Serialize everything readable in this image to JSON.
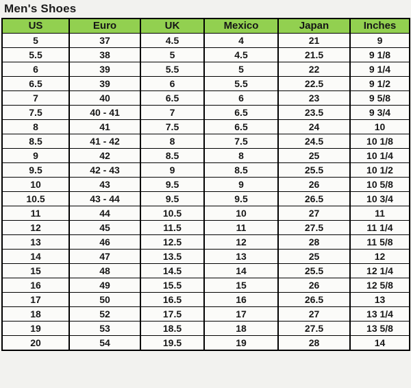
{
  "page": {
    "title": "Men's Shoes"
  },
  "colors": {
    "header_bg": "#92d050",
    "border": "#000000",
    "cell_bg": "#fbfbf9",
    "page_bg": "#f2f2ef",
    "text": "#161616"
  },
  "chart_data": {
    "type": "table",
    "title": "Men's Shoes",
    "columns": [
      "US",
      "Euro",
      "UK",
      "Mexico",
      "Japan",
      "Inches"
    ],
    "rows": [
      [
        "5",
        "37",
        "4.5",
        "4",
        "21",
        "9"
      ],
      [
        "5.5",
        "38",
        "5",
        "4.5",
        "21.5",
        "9 1/8"
      ],
      [
        "6",
        "39",
        "5.5",
        "5",
        "22",
        "9 1/4"
      ],
      [
        "6.5",
        "39",
        "6",
        "5.5",
        "22.5",
        "9 1/2"
      ],
      [
        "7",
        "40",
        "6.5",
        "6",
        "23",
        "9 5/8"
      ],
      [
        "7.5",
        "40 - 41",
        "7",
        "6.5",
        "23.5",
        "9 3/4"
      ],
      [
        "8",
        "41",
        "7.5",
        "6.5",
        "24",
        "10"
      ],
      [
        "8.5",
        "41 - 42",
        "8",
        "7.5",
        "24.5",
        "10 1/8"
      ],
      [
        "9",
        "42",
        "8.5",
        "8",
        "25",
        "10 1/4"
      ],
      [
        "9.5",
        "42 - 43",
        "9",
        "8.5",
        "25.5",
        "10 1/2"
      ],
      [
        "10",
        "43",
        "9.5",
        "9",
        "26",
        "10 5/8"
      ],
      [
        "10.5",
        "43 - 44",
        "9.5",
        "9.5",
        "26.5",
        "10 3/4"
      ],
      [
        "11",
        "44",
        "10.5",
        "10",
        "27",
        "11"
      ],
      [
        "12",
        "45",
        "11.5",
        "11",
        "27.5",
        "11 1/4"
      ],
      [
        "13",
        "46",
        "12.5",
        "12",
        "28",
        "11 5/8"
      ],
      [
        "14",
        "47",
        "13.5",
        "13",
        "25",
        "12"
      ],
      [
        "15",
        "48",
        "14.5",
        "14",
        "25.5",
        "12 1/4"
      ],
      [
        "16",
        "49",
        "15.5",
        "15",
        "26",
        "12 5/8"
      ],
      [
        "17",
        "50",
        "16.5",
        "16",
        "26.5",
        "13"
      ],
      [
        "18",
        "52",
        "17.5",
        "17",
        "27",
        "13 1/4"
      ],
      [
        "19",
        "53",
        "18.5",
        "18",
        "27.5",
        "13 5/8"
      ],
      [
        "20",
        "54",
        "19.5",
        "19",
        "28",
        "14"
      ]
    ]
  }
}
